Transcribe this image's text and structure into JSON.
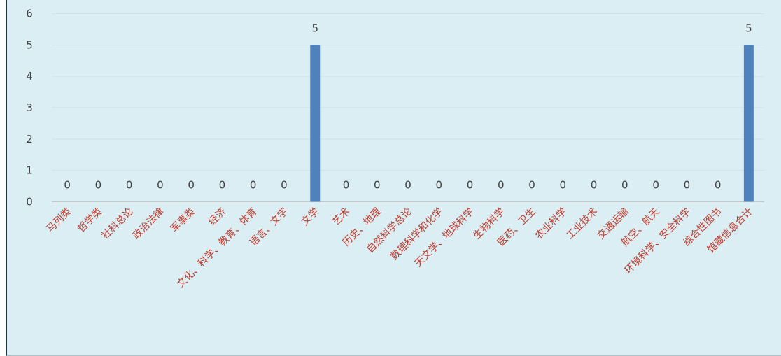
{
  "chart_data": {
    "type": "bar",
    "categories": [
      "马列类",
      "哲学类",
      "社科总论",
      "政治法律",
      "军事类",
      "经济",
      "文化、科学、教育、体育",
      "语言、文字",
      "文学",
      "艺术",
      "历史、地理",
      "自然科学总论",
      "数理科学和化学",
      "天文学、地球科学",
      "生物科学",
      "医药、卫生",
      "农业科学",
      "工业技术",
      "交通运输",
      "航空、航天",
      "环境科学、安全科学",
      "综合性图书",
      "馆藏信息合计"
    ],
    "values": [
      0,
      0,
      0,
      0,
      0,
      0,
      0,
      0,
      5,
      0,
      0,
      0,
      0,
      0,
      0,
      0,
      0,
      0,
      0,
      0,
      0,
      0,
      5
    ],
    "ylim": [
      0,
      6
    ],
    "yticks": [
      0,
      1,
      2,
      3,
      4,
      5,
      6
    ],
    "grid": true,
    "bar_color": "#4f81bd",
    "background": "#dbeef4",
    "label_color": "#c0392b"
  }
}
